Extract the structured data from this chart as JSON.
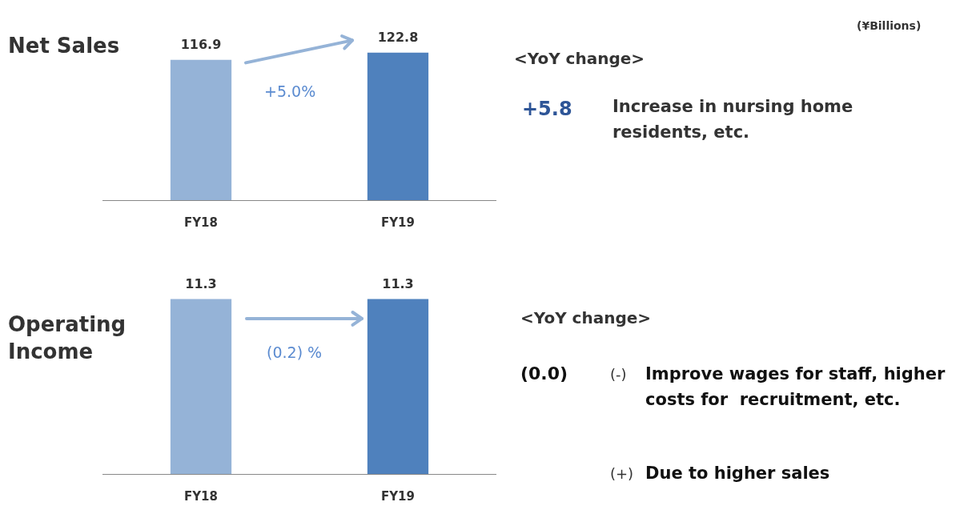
{
  "chart_data": [
    {
      "type": "bar",
      "title": "Net Sales",
      "categories": [
        "FY18",
        "FY19"
      ],
      "values": [
        116.9,
        122.8
      ],
      "colors": [
        "#95b3d7",
        "#4f81bd"
      ],
      "data_labels": true,
      "annotations": [
        "(¥Billions)",
        "+5.0%",
        "<YoY change>",
        "+5.8",
        "Increase in nursing home residents, etc."
      ]
    },
    {
      "type": "bar",
      "title": "Operating Income",
      "categories": [
        "FY18",
        "FY19"
      ],
      "values": [
        11.3,
        11.3
      ],
      "colors": [
        "#95b3d7",
        "#4f81bd"
      ],
      "data_labels": true,
      "annotations": [
        "(0.2) %",
        "<YoY change>",
        "(0.0)",
        "(-)",
        "Improve wages for staff, higher costs for  recruitment, etc.",
        "(+)",
        "Due to higher sales"
      ]
    }
  ]
}
